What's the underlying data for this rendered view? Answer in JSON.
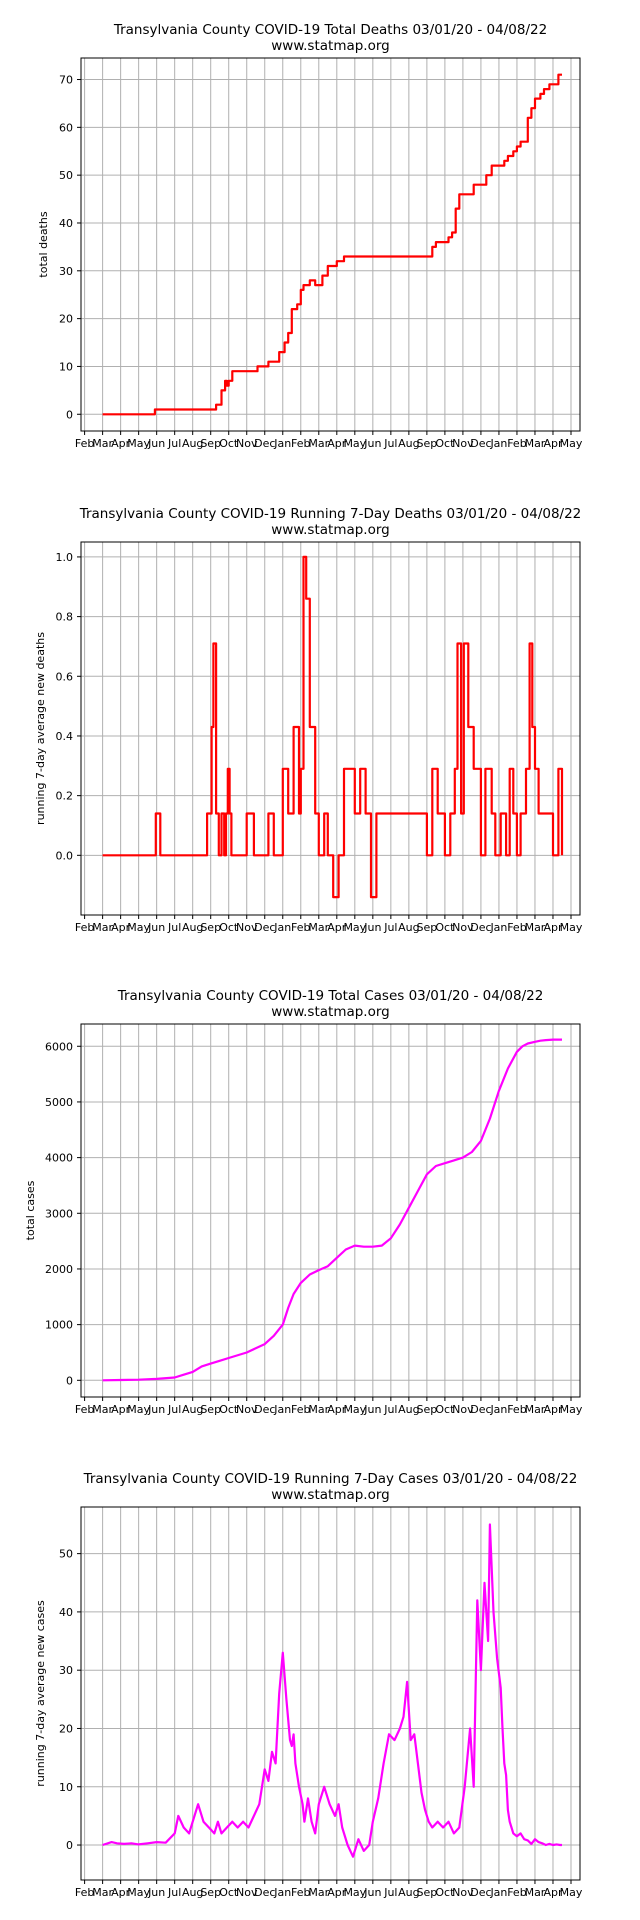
{
  "chart_data": [
    {
      "type": "line",
      "title": "Transylvania County COVID-19 Total Deaths 03/01/20 - 04/08/22",
      "subtitle": "www.statmap.org",
      "ylabel": "total deaths",
      "xlabel": "",
      "x_ticks": [
        "Feb",
        "Mar",
        "Apr",
        "May",
        "Jun",
        "Jul",
        "Aug",
        "Sep",
        "Oct",
        "Nov",
        "Dec",
        "Jan",
        "Feb",
        "Mar",
        "Apr",
        "May",
        "Jun",
        "Jul",
        "Aug",
        "Sep",
        "Oct",
        "Nov",
        "Dec",
        "Jan",
        "Feb",
        "Mar",
        "Apr",
        "May"
      ],
      "y_ticks": [
        0,
        10,
        20,
        30,
        40,
        50,
        60,
        70
      ],
      "ylim": [
        -3.5,
        74.5
      ],
      "xlim": [
        -1.2,
        26.5
      ],
      "grid": true,
      "color": "#ff0000",
      "step": true,
      "series": [
        {
          "x": [
            0,
            2.9,
            2.9,
            6.3,
            6.6,
            6.8,
            6.9,
            7.0,
            7.2,
            7.5,
            8.6,
            9.2,
            9.8,
            10.1,
            10.3,
            10.5,
            10.8,
            11.0,
            11.15,
            11.3,
            11.5,
            11.8,
            12.2,
            12.5,
            13.0,
            13.4,
            13.7,
            14.0,
            14.2,
            14.7,
            14.9,
            18.3,
            18.5,
            19.0,
            19.2,
            19.4,
            19.6,
            19.8,
            20.6,
            21.0,
            21.3,
            21.6,
            21.9,
            22.3,
            22.5,
            22.8,
            23.0,
            23.2,
            23.6,
            23.8,
            24.0,
            24.3,
            24.5,
            24.8,
            25.3,
            25.5
          ],
          "y": [
            0,
            0,
            1,
            2,
            5,
            7,
            6,
            7,
            9,
            9,
            10,
            11,
            13,
            15,
            17,
            22,
            23,
            26,
            27,
            27,
            28,
            27,
            29,
            31,
            32,
            33,
            33,
            33,
            33,
            33,
            33,
            35,
            36,
            36,
            37,
            38,
            43,
            46,
            48,
            48,
            50,
            52,
            52,
            53,
            54,
            55,
            56,
            57,
            62,
            64,
            66,
            67,
            68,
            69,
            71,
            71
          ]
        }
      ]
    },
    {
      "type": "line",
      "title": "Transylvania County COVID-19 Running 7-Day Deaths 03/01/20 - 04/08/22",
      "subtitle": "www.statmap.org",
      "ylabel": "running 7-day average new deaths",
      "xlabel": "",
      "x_ticks": [
        "Feb",
        "Mar",
        "Apr",
        "May",
        "Jun",
        "Jul",
        "Aug",
        "Sep",
        "Oct",
        "Nov",
        "Dec",
        "Jan",
        "Feb",
        "Mar",
        "Apr",
        "May",
        "Jun",
        "Jul",
        "Aug",
        "Sep",
        "Oct",
        "Nov",
        "Dec",
        "Jan",
        "Feb",
        "Mar",
        "Apr",
        "May"
      ],
      "y_ticks": [
        0.0,
        0.2,
        0.4,
        0.6,
        0.8,
        1.0
      ],
      "ylim": [
        -0.2,
        1.05
      ],
      "xlim": [
        -1.2,
        26.5
      ],
      "grid": true,
      "color": "#ff0000",
      "step": true,
      "series": [
        {
          "x": [
            0,
            2.95,
            3.2,
            5.8,
            6.05,
            6.15,
            6.3,
            6.45,
            6.6,
            6.75,
            6.85,
            6.95,
            7.05,
            7.15,
            7.3,
            8.0,
            8.4,
            8.6,
            9.2,
            9.5,
            10.0,
            10.3,
            10.6,
            10.9,
            11.0,
            11.15,
            11.3,
            11.5,
            11.8,
            12.0,
            12.3,
            12.5,
            12.8,
            13.1,
            13.4,
            14.0,
            14.3,
            14.6,
            14.9,
            15.2,
            18.0,
            18.3,
            18.6,
            19.0,
            19.3,
            19.55,
            19.7,
            19.9,
            20.05,
            20.3,
            20.6,
            21.0,
            21.25,
            21.6,
            21.8,
            22.1,
            22.4,
            22.6,
            22.8,
            23.0,
            23.2,
            23.5,
            23.7,
            23.85,
            24.0,
            24.2,
            24.4,
            24.6,
            25.0,
            25.3,
            25.5
          ],
          "y": [
            0,
            0.14,
            0,
            0.14,
            0.43,
            0.71,
            0.14,
            0,
            0.14,
            0,
            0.14,
            0.29,
            0.14,
            0,
            0,
            0.14,
            0,
            0,
            0.14,
            0,
            0.29,
            0.14,
            0.43,
            0.14,
            0.29,
            1.0,
            0.86,
            0.43,
            0.14,
            0,
            0.14,
            0,
            -0.14,
            0,
            0.29,
            0.14,
            0.29,
            0.14,
            -0.14,
            0.14,
            0,
            0.29,
            0.14,
            0,
            0.14,
            0.29,
            0.71,
            0.14,
            0.71,
            0.43,
            0.29,
            0,
            0.29,
            0.14,
            0,
            0.14,
            0,
            0.29,
            0.14,
            0,
            0.14,
            0.29,
            0.71,
            0.43,
            0.29,
            0.14,
            0.14,
            0.14,
            0,
            0.29,
            0
          ]
        }
      ]
    },
    {
      "type": "line",
      "title": "Transylvania County COVID-19 Total Cases 03/01/20 - 04/08/22",
      "subtitle": "www.statmap.org",
      "ylabel": "total cases",
      "xlabel": "",
      "x_ticks": [
        "Feb",
        "Mar",
        "Apr",
        "May",
        "Jun",
        "Jul",
        "Aug",
        "Sep",
        "Oct",
        "Nov",
        "Dec",
        "Jan",
        "Feb",
        "Mar",
        "Apr",
        "May",
        "Jun",
        "Jul",
        "Aug",
        "Sep",
        "Oct",
        "Nov",
        "Dec",
        "Jan",
        "Feb",
        "Mar",
        "Apr",
        "May"
      ],
      "y_ticks": [
        0,
        1000,
        2000,
        3000,
        4000,
        5000,
        6000
      ],
      "ylim": [
        -300,
        6400
      ],
      "xlim": [
        -1.2,
        26.5
      ],
      "grid": true,
      "color": "#ff00ff",
      "step": false,
      "series": [
        {
          "x": [
            0,
            1,
            2,
            3,
            4,
            4.5,
            5,
            5.5,
            6,
            6.5,
            7,
            8,
            9,
            9.5,
            10,
            10.3,
            10.6,
            11,
            11.5,
            12,
            12.5,
            13,
            13.5,
            14,
            14.5,
            15,
            15.5,
            16,
            16.5,
            17,
            17.5,
            18,
            18.5,
            19,
            19.5,
            20,
            20.5,
            21,
            21.5,
            22,
            22.5,
            23,
            23.3,
            23.6,
            24,
            24.3,
            24.6,
            25,
            25.5
          ],
          "y": [
            0,
            5,
            10,
            25,
            50,
            100,
            150,
            250,
            300,
            350,
            400,
            500,
            650,
            800,
            1000,
            1300,
            1550,
            1750,
            1900,
            1980,
            2050,
            2200,
            2350,
            2420,
            2400,
            2400,
            2420,
            2550,
            2800,
            3100,
            3400,
            3700,
            3850,
            3900,
            3950,
            4000,
            4100,
            4300,
            4700,
            5200,
            5600,
            5900,
            6000,
            6050,
            6080,
            6100,
            6110,
            6120,
            6120
          ]
        }
      ]
    },
    {
      "type": "line",
      "title": "Transylvania County COVID-19 Running 7-Day Cases 03/01/20 - 04/08/22",
      "subtitle": "www.statmap.org",
      "ylabel": "running 7-day average new cases",
      "xlabel": "",
      "x_ticks": [
        "Feb",
        "Mar",
        "Apr",
        "May",
        "Jun",
        "Jul",
        "Aug",
        "Sep",
        "Oct",
        "Nov",
        "Dec",
        "Jan",
        "Feb",
        "Mar",
        "Apr",
        "May",
        "Jun",
        "Jul",
        "Aug",
        "Sep",
        "Oct",
        "Nov",
        "Dec",
        "Jan",
        "Feb",
        "Mar",
        "Apr",
        "May"
      ],
      "y_ticks": [
        0,
        10,
        20,
        30,
        40,
        50
      ],
      "ylim": [
        -6,
        58
      ],
      "xlim": [
        -1.2,
        26.5
      ],
      "grid": true,
      "color": "#ff00ff",
      "step": false,
      "series": [
        {
          "x": [
            0,
            0.5,
            0.8,
            1.2,
            1.6,
            2,
            2.5,
            3,
            3.5,
            4,
            4.2,
            4.5,
            4.8,
            5,
            5.3,
            5.6,
            5.9,
            6.2,
            6.4,
            6.6,
            6.9,
            7.2,
            7.5,
            7.8,
            8.1,
            8.4,
            8.7,
            9.0,
            9.2,
            9.4,
            9.6,
            9.8,
            10.0,
            10.2,
            10.4,
            10.5,
            10.6,
            10.7,
            10.9,
            11.1,
            11.2,
            11.4,
            11.6,
            11.8,
            12.0,
            12.3,
            12.6,
            12.9,
            13.1,
            13.3,
            13.6,
            13.9,
            14.2,
            14.5,
            14.8,
            15.0,
            15.3,
            15.6,
            15.9,
            16.2,
            16.5,
            16.7,
            16.9,
            17.1,
            17.3,
            17.5,
            17.7,
            17.9,
            18.1,
            18.3,
            18.6,
            18.9,
            19.2,
            19.5,
            19.8,
            20.1,
            20.4,
            20.6,
            20.8,
            21.0,
            21.2,
            21.4,
            21.5,
            21.7,
            21.9,
            22.1,
            22.2,
            22.3,
            22.4,
            22.5,
            22.6,
            22.7,
            22.8,
            23.0,
            23.2,
            23.4,
            23.6,
            23.8,
            24.0,
            24.2,
            24.4,
            24.6,
            24.8,
            25.0,
            25.2,
            25.4,
            25.5
          ],
          "y": [
            0,
            0.5,
            0.3,
            0.2,
            0.3,
            0.1,
            0.3,
            0.5,
            0.4,
            2,
            5,
            3,
            2,
            4,
            7,
            4,
            3,
            2,
            4,
            2,
            3,
            4,
            3,
            4,
            3,
            5,
            7,
            13,
            11,
            16,
            14,
            26,
            33,
            25,
            18,
            17,
            19,
            14,
            10,
            7,
            4,
            8,
            4,
            2,
            7,
            10,
            7,
            5,
            7,
            3,
            0,
            -2,
            1,
            -1,
            0,
            4,
            8,
            14,
            19,
            18,
            20,
            22,
            28,
            18,
            19,
            14,
            9,
            6,
            4,
            3,
            4,
            3,
            4,
            2,
            3,
            10,
            20,
            10,
            42,
            30,
            45,
            35,
            55,
            40,
            32,
            27,
            20,
            14,
            12,
            6,
            4,
            3,
            2,
            1.5,
            2,
            1,
            0.8,
            0.2,
            1,
            0.5,
            0.3,
            0,
            0.2,
            0,
            0.1,
            0,
            0
          ]
        }
      ]
    }
  ]
}
